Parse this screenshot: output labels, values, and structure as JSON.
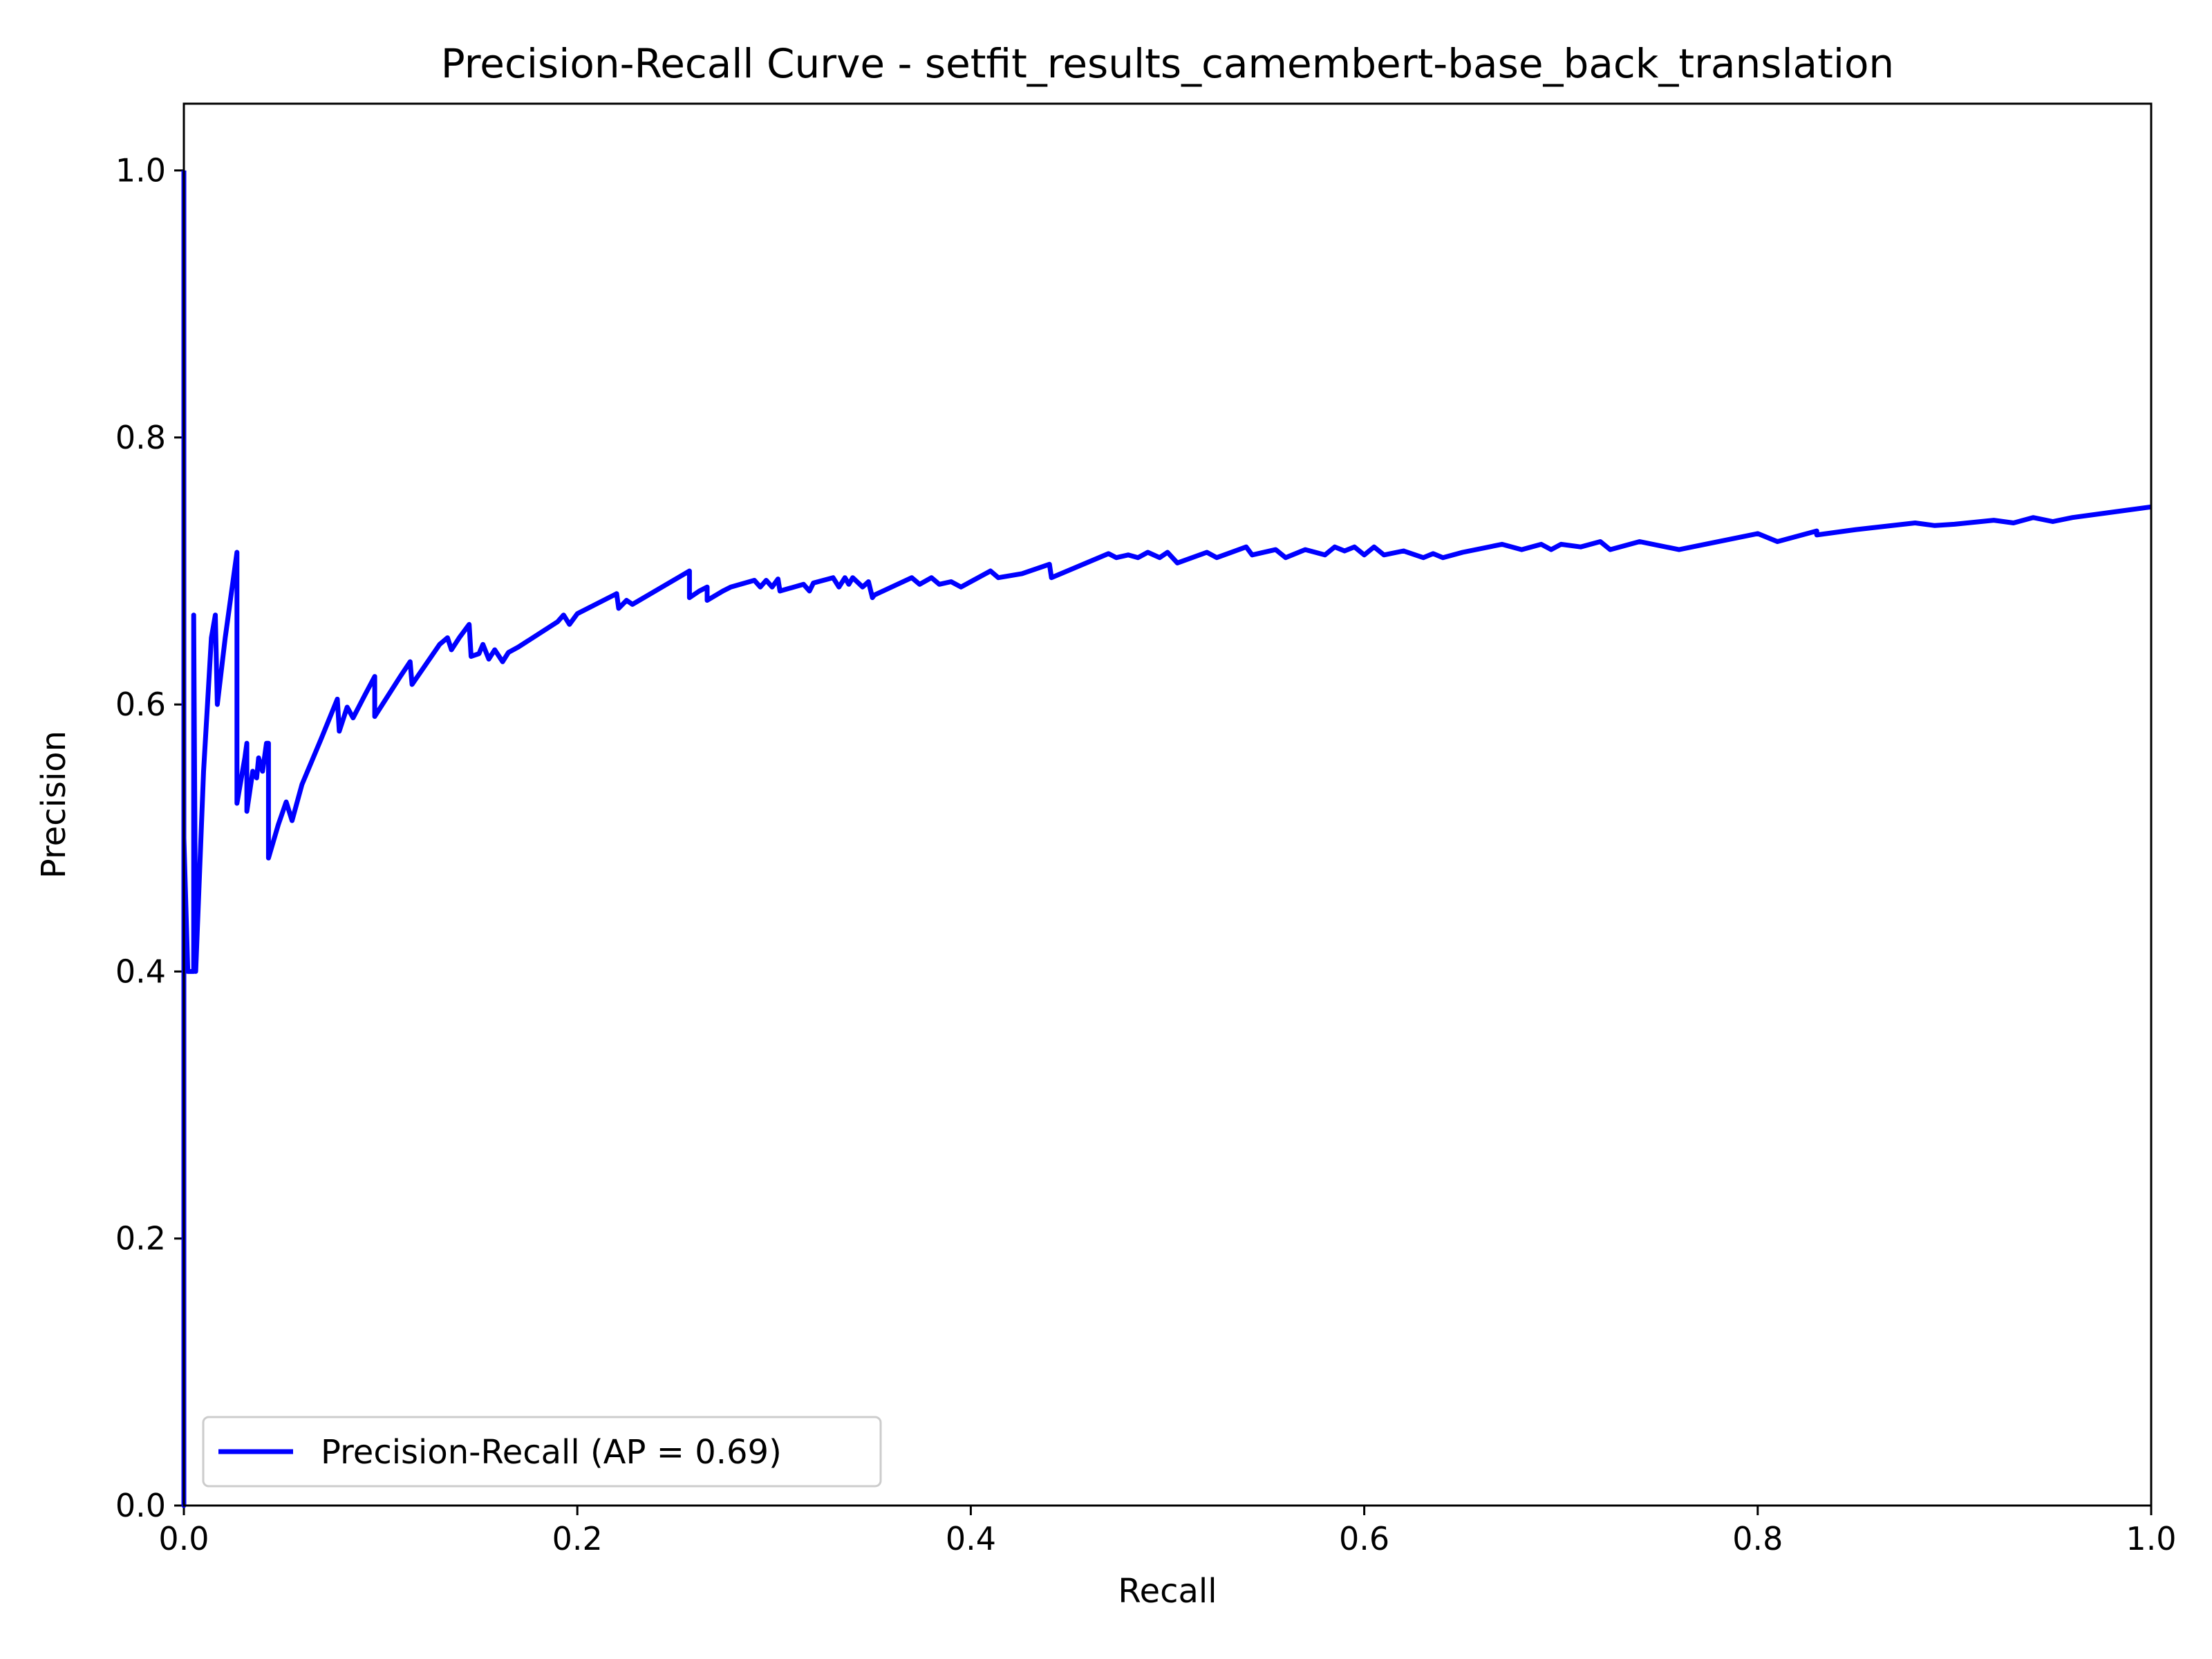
{
  "chart_data": {
    "type": "line",
    "title": "Precision-Recall Curve - setfit_results_camembert-base_back_translation",
    "xlabel": "Recall",
    "ylabel": "Precision",
    "xlim": [
      0.0,
      1.0
    ],
    "ylim": [
      0.0,
      1.05
    ],
    "x_ticks": [
      0.0,
      0.2,
      0.4,
      0.6,
      0.8,
      1.0
    ],
    "x_tick_labels": [
      "0.0",
      "0.2",
      "0.4",
      "0.6",
      "0.8",
      "1.0"
    ],
    "y_ticks": [
      0.0,
      0.2,
      0.4,
      0.6,
      0.8,
      1.0
    ],
    "y_tick_labels": [
      "0.0",
      "0.2",
      "0.4",
      "0.6",
      "0.8",
      "1.0"
    ],
    "grid": false,
    "legend_position": "lower-left",
    "series": [
      {
        "name": "Precision-Recall (AP = 0.69)",
        "color": "#0000ff",
        "x": [
          0.0,
          0.0,
          0.0,
          0.002,
          0.005,
          0.005,
          0.006,
          0.01,
          0.014,
          0.016,
          0.017,
          0.021,
          0.027,
          0.027,
          0.031,
          0.032,
          0.032,
          0.035,
          0.037,
          0.038,
          0.04,
          0.042,
          0.043,
          0.043,
          0.048,
          0.052,
          0.055,
          0.06,
          0.07,
          0.078,
          0.079,
          0.083,
          0.086,
          0.092,
          0.097,
          0.097,
          0.11,
          0.115,
          0.116,
          0.13,
          0.134,
          0.136,
          0.14,
          0.145,
          0.146,
          0.15,
          0.152,
          0.155,
          0.158,
          0.162,
          0.165,
          0.17,
          0.19,
          0.193,
          0.196,
          0.2,
          0.22,
          0.221,
          0.225,
          0.228,
          0.257,
          0.257,
          0.262,
          0.266,
          0.266,
          0.274,
          0.278,
          0.29,
          0.293,
          0.296,
          0.299,
          0.302,
          0.303,
          0.315,
          0.318,
          0.32,
          0.33,
          0.333,
          0.336,
          0.338,
          0.34,
          0.345,
          0.348,
          0.35,
          0.351,
          0.37,
          0.374,
          0.38,
          0.384,
          0.39,
          0.395,
          0.41,
          0.414,
          0.426,
          0.44,
          0.441,
          0.47,
          0.474,
          0.48,
          0.485,
          0.49,
          0.496,
          0.5,
          0.505,
          0.52,
          0.525,
          0.54,
          0.543,
          0.555,
          0.56,
          0.57,
          0.58,
          0.585,
          0.59,
          0.595,
          0.6,
          0.605,
          0.61,
          0.62,
          0.63,
          0.635,
          0.64,
          0.65,
          0.67,
          0.68,
          0.69,
          0.695,
          0.7,
          0.71,
          0.72,
          0.725,
          0.74,
          0.76,
          0.8,
          0.81,
          0.83,
          0.83,
          0.85,
          0.88,
          0.89,
          0.9,
          0.92,
          0.93,
          0.94,
          0.95,
          0.96,
          1.0
        ],
        "y": [
          1.0,
          0.0,
          0.5,
          0.4,
          0.4,
          0.667,
          0.4,
          0.55,
          0.65,
          0.667,
          0.6,
          0.65,
          0.714,
          0.526,
          0.56,
          0.571,
          0.52,
          0.55,
          0.545,
          0.56,
          0.55,
          0.571,
          0.571,
          0.485,
          0.51,
          0.527,
          0.513,
          0.54,
          0.575,
          0.604,
          0.58,
          0.598,
          0.59,
          0.607,
          0.621,
          0.591,
          0.621,
          0.632,
          0.615,
          0.645,
          0.65,
          0.641,
          0.65,
          0.66,
          0.636,
          0.638,
          0.645,
          0.634,
          0.641,
          0.632,
          0.639,
          0.643,
          0.662,
          0.667,
          0.66,
          0.668,
          0.683,
          0.672,
          0.678,
          0.675,
          0.7,
          0.68,
          0.685,
          0.688,
          0.678,
          0.685,
          0.688,
          0.693,
          0.688,
          0.693,
          0.688,
          0.694,
          0.685,
          0.69,
          0.685,
          0.691,
          0.695,
          0.688,
          0.695,
          0.69,
          0.695,
          0.688,
          0.692,
          0.68,
          0.682,
          0.695,
          0.69,
          0.695,
          0.69,
          0.692,
          0.688,
          0.7,
          0.695,
          0.698,
          0.705,
          0.695,
          0.713,
          0.71,
          0.712,
          0.71,
          0.714,
          0.71,
          0.714,
          0.706,
          0.714,
          0.71,
          0.718,
          0.712,
          0.716,
          0.71,
          0.716,
          0.712,
          0.718,
          0.715,
          0.718,
          0.712,
          0.718,
          0.712,
          0.715,
          0.71,
          0.713,
          0.71,
          0.714,
          0.72,
          0.716,
          0.72,
          0.716,
          0.72,
          0.718,
          0.722,
          0.716,
          0.722,
          0.716,
          0.728,
          0.722,
          0.73,
          0.727,
          0.731,
          0.736,
          0.734,
          0.735,
          0.738,
          0.736,
          0.74,
          0.737,
          0.74,
          0.748
        ]
      }
    ]
  }
}
